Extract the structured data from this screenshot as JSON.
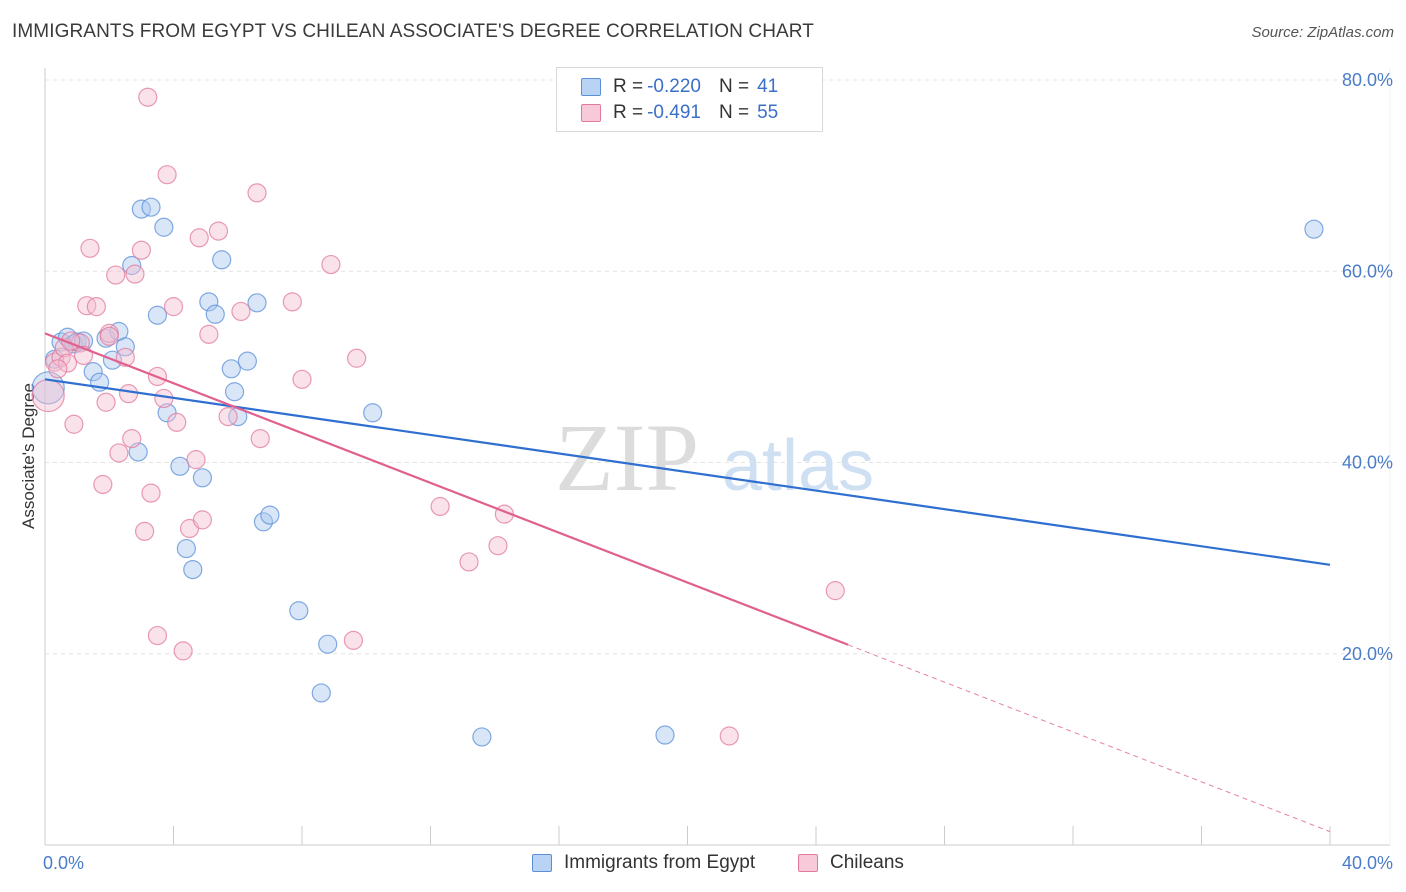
{
  "title": "IMMIGRANTS FROM EGYPT VS CHILEAN ASSOCIATE'S DEGREE CORRELATION CHART",
  "source": "Source: ZipAtlas.com",
  "watermark": {
    "zip": "ZIP",
    "atlas": "atlas"
  },
  "legend_top": {
    "rows": [
      {
        "r_label": "R = ",
        "r_value": "-0.220",
        "n_label": "N = ",
        "n_value": "41"
      },
      {
        "r_label": "R = ",
        "r_value": "-0.491",
        "n_label": "N = ",
        "n_value": "55"
      }
    ]
  },
  "colors": {
    "blue_fill": "#a9c8f0",
    "blue_stroke": "#5b8fd8",
    "blue_line": "#2f6fd0",
    "pink_fill": "#f5bfd0",
    "pink_stroke": "#e27a9c",
    "pink_line": "#e0608e",
    "grid": "#e4e4e4",
    "tick_text": "#4a7cc9"
  },
  "chart_data": {
    "type": "scatter",
    "title": "IMMIGRANTS FROM EGYPT VS CHILEAN ASSOCIATE'S DEGREE CORRELATION CHART",
    "xlabel": "",
    "ylabel": "Associate's Degree",
    "xlim": [
      0,
      40
    ],
    "ylim": [
      0,
      80
    ],
    "x_tick_labels": [
      "0.0%",
      "40.0%"
    ],
    "y_tick_labels": [
      "20.0%",
      "40.0%",
      "60.0%",
      "80.0%"
    ],
    "y_ticks": [
      20,
      40,
      60,
      80
    ],
    "grid": true,
    "legend_position": "bottom",
    "series": [
      {
        "name": "Immigrants from Egypt",
        "color": "#5b8fd8",
        "r": -0.22,
        "n": 41,
        "trend": {
          "x0": 0,
          "y0": 48.7,
          "x1": 40,
          "y1": 29.3,
          "dashed_from": null
        },
        "points": [
          [
            0.1,
            47.8
          ],
          [
            0.3,
            50.8
          ],
          [
            0.5,
            52.6
          ],
          [
            0.7,
            53.1
          ],
          [
            0.9,
            52.4
          ],
          [
            1.0,
            52.6
          ],
          [
            1.2,
            52.7
          ],
          [
            1.5,
            49.5
          ],
          [
            1.7,
            48.4
          ],
          [
            1.9,
            53.0
          ],
          [
            2.1,
            50.7
          ],
          [
            2.3,
            53.7
          ],
          [
            2.5,
            52.1
          ],
          [
            2.7,
            60.6
          ],
          [
            3.0,
            66.5
          ],
          [
            3.3,
            66.7
          ],
          [
            3.5,
            55.4
          ],
          [
            3.7,
            64.6
          ],
          [
            3.8,
            45.2
          ],
          [
            4.2,
            39.6
          ],
          [
            4.4,
            31.0
          ],
          [
            4.6,
            28.8
          ],
          [
            4.9,
            38.4
          ],
          [
            5.1,
            56.8
          ],
          [
            5.3,
            55.5
          ],
          [
            5.5,
            61.2
          ],
          [
            5.8,
            49.8
          ],
          [
            5.9,
            47.4
          ],
          [
            6.0,
            44.8
          ],
          [
            6.3,
            50.6
          ],
          [
            6.6,
            56.7
          ],
          [
            6.8,
            33.8
          ],
          [
            7.0,
            34.5
          ],
          [
            7.9,
            24.5
          ],
          [
            8.8,
            21.0
          ],
          [
            8.6,
            15.9
          ],
          [
            10.2,
            45.2
          ],
          [
            2.9,
            41.1
          ],
          [
            13.6,
            11.3
          ],
          [
            19.3,
            11.5
          ],
          [
            39.5,
            64.4
          ]
        ]
      },
      {
        "name": "Chileans",
        "color": "#e27a9c",
        "r": -0.491,
        "n": 55,
        "trend": {
          "x0": 0,
          "y0": 53.5,
          "x1": 40,
          "y1": 1.4,
          "dashed_from": 25
        },
        "points": [
          [
            0.1,
            47.0
          ],
          [
            0.3,
            50.5
          ],
          [
            0.5,
            51.0
          ],
          [
            0.6,
            52.0
          ],
          [
            0.7,
            50.4
          ],
          [
            0.9,
            44.0
          ],
          [
            1.1,
            52.5
          ],
          [
            1.3,
            56.4
          ],
          [
            1.4,
            62.4
          ],
          [
            1.6,
            56.3
          ],
          [
            1.8,
            37.7
          ],
          [
            1.9,
            46.3
          ],
          [
            2.0,
            53.5
          ],
          [
            2.2,
            59.6
          ],
          [
            2.3,
            41.0
          ],
          [
            2.5,
            51.0
          ],
          [
            2.6,
            47.2
          ],
          [
            2.7,
            42.5
          ],
          [
            2.8,
            59.7
          ],
          [
            3.0,
            62.2
          ],
          [
            3.1,
            32.8
          ],
          [
            3.2,
            78.2
          ],
          [
            3.3,
            36.8
          ],
          [
            3.5,
            49.0
          ],
          [
            3.5,
            21.9
          ],
          [
            3.7,
            46.7
          ],
          [
            3.8,
            70.1
          ],
          [
            4.0,
            56.3
          ],
          [
            4.1,
            44.2
          ],
          [
            4.3,
            20.3
          ],
          [
            4.5,
            33.1
          ],
          [
            4.7,
            40.3
          ],
          [
            4.8,
            63.5
          ],
          [
            4.9,
            34.0
          ],
          [
            5.1,
            53.4
          ],
          [
            5.4,
            64.2
          ],
          [
            5.7,
            44.8
          ],
          [
            6.1,
            55.8
          ],
          [
            6.7,
            42.5
          ],
          [
            6.6,
            68.2
          ],
          [
            7.7,
            56.8
          ],
          [
            8.0,
            48.7
          ],
          [
            8.9,
            60.7
          ],
          [
            9.6,
            21.4
          ],
          [
            9.7,
            50.9
          ],
          [
            12.3,
            35.4
          ],
          [
            13.2,
            29.6
          ],
          [
            14.1,
            31.3
          ],
          [
            14.3,
            34.6
          ],
          [
            21.3,
            11.4
          ],
          [
            24.6,
            26.6
          ],
          [
            0.8,
            52.7
          ],
          [
            1.2,
            51.2
          ],
          [
            0.4,
            49.8
          ],
          [
            2.0,
            53.2
          ]
        ]
      }
    ]
  },
  "bottom_legend": [
    {
      "label": "Immigrants from Egypt"
    },
    {
      "label": "Chileans"
    }
  ]
}
